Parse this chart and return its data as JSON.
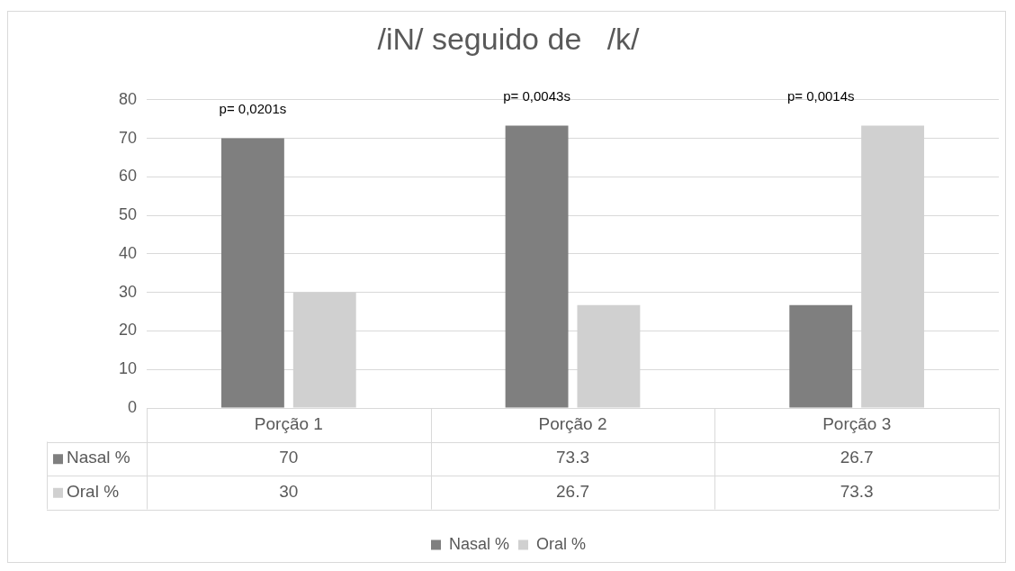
{
  "chart_data": {
    "type": "bar",
    "title": "/iN/ seguido de   /k/",
    "categories": [
      "Porção 1",
      "Porção 2",
      "Porção 3"
    ],
    "series": [
      {
        "name": "Nasal %",
        "color": "#7f7f7f",
        "values": [
          70,
          73.3,
          26.7
        ]
      },
      {
        "name": "Oral %",
        "color": "#d0d0d0",
        "values": [
          30,
          26.7,
          73.3
        ]
      }
    ],
    "ylim": [
      0,
      80
    ],
    "yticks": [
      0,
      10,
      20,
      30,
      40,
      50,
      60,
      70,
      80
    ],
    "grid": "y",
    "legend": "bottom",
    "data_labels": true,
    "annotations": [
      "p= 0,0201s",
      "p= 0,0043s",
      "p= 0,0014s"
    ]
  }
}
